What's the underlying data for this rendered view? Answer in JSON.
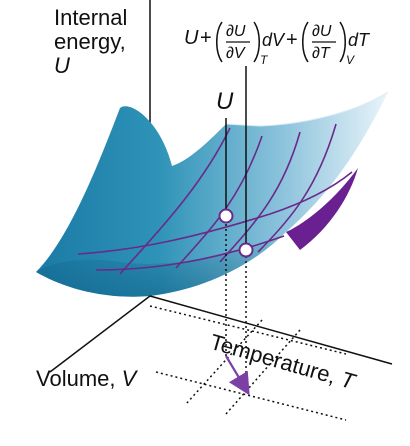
{
  "labels": {
    "internal_energy_line1": "Internal",
    "internal_energy_line2": "energy,",
    "internal_energy_symbol": "U",
    "point_label": "U",
    "volume_text": "Volume,",
    "volume_symbol": "V",
    "temperature_text": "Temperature,",
    "temperature_symbol": "T"
  },
  "formula": {
    "u": "U",
    "plus1": "+",
    "term1_numer": "∂U",
    "term1_denom": "∂V",
    "term1_sub": "T",
    "term1_diff": "dV",
    "plus2": "+",
    "term2_numer": "∂U",
    "term2_denom": "∂T",
    "term2_sub": "V",
    "term2_diff": "dT"
  },
  "colors": {
    "surface_dark": "#1e7fa6",
    "surface_light": "#e4f1f8",
    "curve": "#6a2a8a",
    "side_face": "#6a2090",
    "arrow": "#7b3fa6",
    "axis": "#111111",
    "point_fill": "#ffffff"
  }
}
